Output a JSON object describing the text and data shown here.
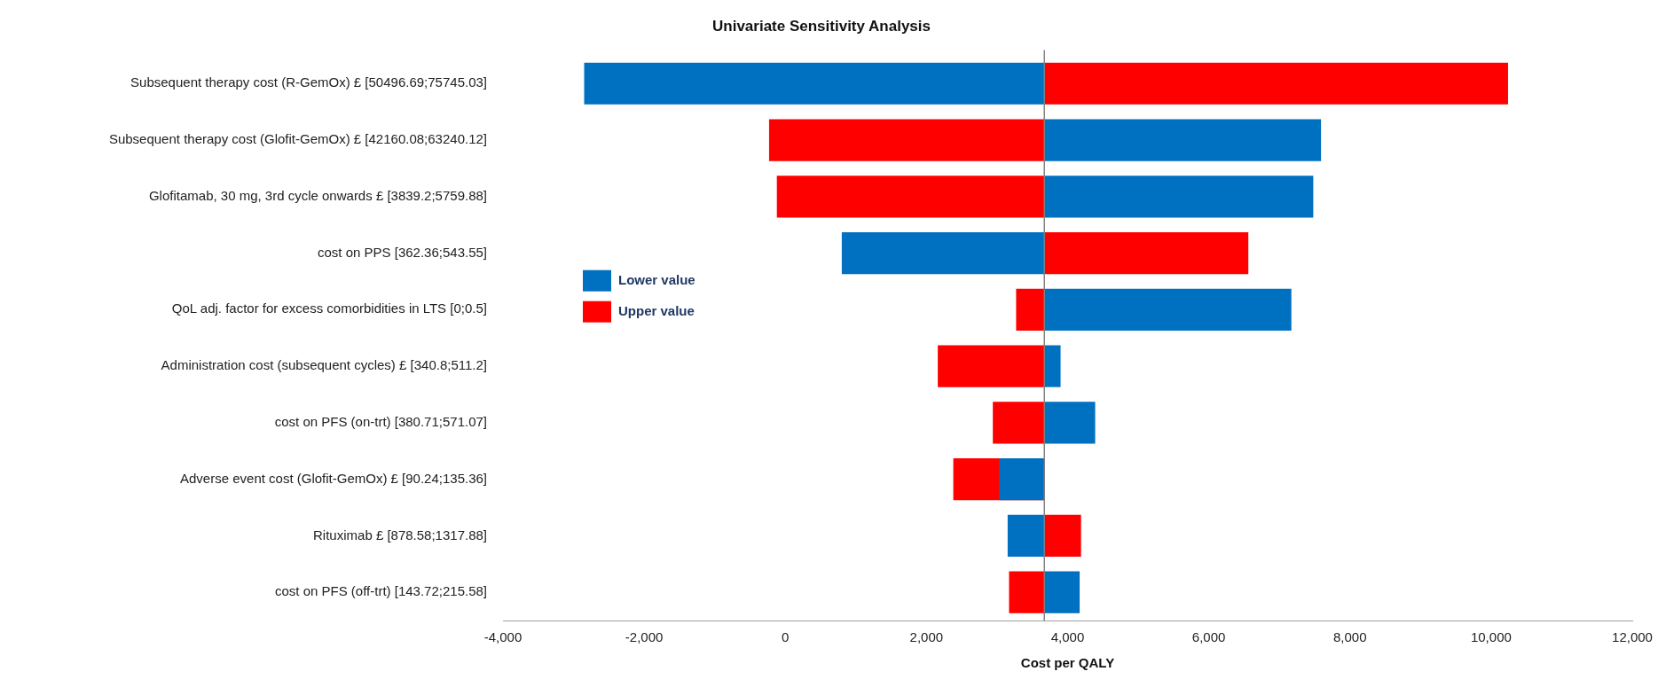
{
  "chart_data": {
    "type": "bar",
    "orientation": "horizontal",
    "title": "Univariate Sensitivity Analysis",
    "xlabel": "Cost per QALY",
    "categories": [
      "Subsequent therapy cost (R-GemOx) £ [50496.69;75745.03]",
      "Subsequent therapy cost (Glofit-GemOx) £ [42160.08;63240.12]",
      "Glofitamab, 30 mg, 3rd cycle onwards £ [3839.2;5759.88]",
      "cost on PPS [362.36;543.55]",
      "QoL adj. factor for excess comorbidities in LTS [0;0.5]",
      "Administration cost (subsequent cycles) £ [340.8;511.2]",
      "cost on PFS (on-trt) [380.71;571.07]",
      "Adverse event cost (Glofit-GemOx) £ [90.24;135.36]",
      "Rituximab £ [878.58;1317.88]",
      "cost on PFS (off-trt) [143.72;215.58]"
    ],
    "series": [
      {
        "name": "Lower value",
        "color": "#0070c0",
        "base": [
          3670,
          3670,
          3670,
          3670,
          3670,
          3670,
          3670,
          3670,
          3670,
          3670
        ],
        "values": [
          -6520,
          3920,
          3810,
          -2870,
          3500,
          230,
          720,
          -640,
          -520,
          500
        ]
      },
      {
        "name": "Upper value",
        "color": "#ff0000",
        "base": [
          3670,
          3670,
          3670,
          3670,
          3670,
          3670,
          3670,
          3670,
          3670,
          3670
        ],
        "values": [
          6570,
          -3900,
          -3790,
          2890,
          -400,
          -1510,
          -730,
          -1290,
          520,
          -500
        ]
      }
    ],
    "xlim": [
      -4000,
      12000
    ],
    "xticks": [
      {
        "value": -4000,
        "label": "-4,000"
      },
      {
        "value": -2000,
        "label": "-2,000"
      },
      0,
      {
        "value": 2000,
        "label": "2,000"
      },
      {
        "value": 4000,
        "label": "4,000"
      },
      {
        "value": 6000,
        "label": "6,000"
      },
      {
        "value": 8000,
        "label": "8,000"
      },
      {
        "value": 10000,
        "label": "10,000"
      },
      {
        "value": 12000,
        "label": "12,000"
      }
    ],
    "ref_lines": [
      {
        "axis": "x",
        "value": 3670,
        "color": "#808080"
      }
    ],
    "grid": false,
    "legend": "left"
  }
}
